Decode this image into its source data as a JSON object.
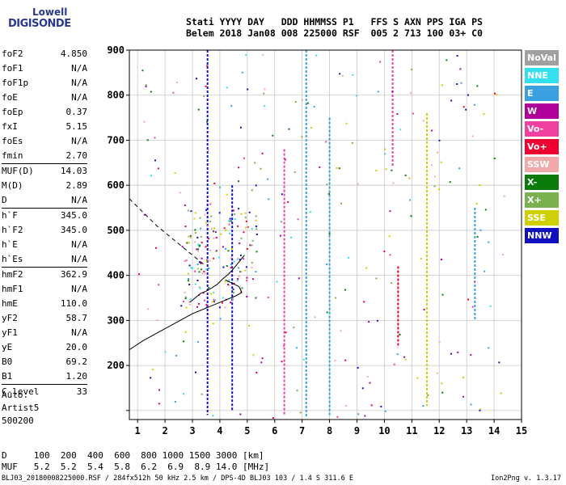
{
  "logo": {
    "line1": "Lowell",
    "line2": "DIGISONDE"
  },
  "header": {
    "line1": "Stati YYYY DAY   DDD HHMMSS P1   FFS S AXN PPS IGA PS",
    "line2": "Belem 2018 Jan08 008 225000 RSF  005 2 713 100 03+ C0"
  },
  "params": [
    {
      "group": [
        {
          "label": "foF2",
          "value": "4.850"
        },
        {
          "label": "foF1",
          "value": "N/A"
        },
        {
          "label": "foF1p",
          "value": "N/A"
        },
        {
          "label": "foE",
          "value": "N/A"
        },
        {
          "label": "foEp",
          "value": "0.37"
        },
        {
          "label": "fxI",
          "value": "5.15"
        },
        {
          "label": "foEs",
          "value": "N/A"
        },
        {
          "label": "fmin",
          "value": "2.70"
        }
      ]
    },
    {
      "group": [
        {
          "label": "MUF(D)",
          "value": "14.03"
        },
        {
          "label": "M(D)",
          "value": "2.89"
        },
        {
          "label": "D",
          "value": "N/A"
        }
      ]
    },
    {
      "group": [
        {
          "label": "h`F",
          "value": "345.0"
        },
        {
          "label": "h`F2",
          "value": "345.0"
        },
        {
          "label": "h`E",
          "value": "N/A"
        },
        {
          "label": "h`Es",
          "value": "N/A"
        }
      ]
    },
    {
      "group": [
        {
          "label": "hmF2",
          "value": "362.9"
        },
        {
          "label": "hmF1",
          "value": "N/A"
        },
        {
          "label": "hmE",
          "value": "110.0"
        },
        {
          "label": "yF2",
          "value": "58.7"
        },
        {
          "label": "yF1",
          "value": "N/A"
        },
        {
          "label": "yE",
          "value": "20.0"
        },
        {
          "label": "B0",
          "value": "69.2"
        },
        {
          "label": "B1",
          "value": "1.20"
        }
      ]
    },
    {
      "group": [
        {
          "label": "C-level",
          "value": "33"
        }
      ]
    }
  ],
  "misc": {
    "line1": "Auto:",
    "line2": "Artist5",
    "line3": "500200"
  },
  "legend": [
    {
      "label": "NoVal",
      "color": "#a0a0a0"
    },
    {
      "label": "NNE",
      "color": "#33e0f0"
    },
    {
      "label": "E",
      "color": "#3aa0e0"
    },
    {
      "label": "W",
      "color": "#b0009a"
    },
    {
      "label": "Vo-",
      "color": "#f040a0"
    },
    {
      "label": "Vo+",
      "color": "#f00030"
    },
    {
      "label": "SSW",
      "color": "#f0a8a8"
    },
    {
      "label": "X-",
      "color": "#0a7a0a"
    },
    {
      "label": "X+",
      "color": "#7ab050"
    },
    {
      "label": "SSE",
      "color": "#d0d000"
    },
    {
      "label": "NNW",
      "color": "#1010c0"
    }
  ],
  "dmuf": {
    "line1": "D     100  200  400  600  800 1000 1500 3000 [km]",
    "line2": "MUF   5.2  5.2  5.4  5.8  6.2  6.9  8.9 14.0 [MHz]"
  },
  "footer": {
    "left": "BLJ03_20180008225000.RSF / 284fx512h 50 kHz 2.5 km / DPS-4D BLJ03 103 / 1.4 S 311.6 E",
    "right": "Ion2Png v. 1.3.17"
  },
  "chart_data": {
    "type": "scatter",
    "xlim": [
      0.7,
      15
    ],
    "ylim": [
      80,
      900
    ],
    "x_ticks": [
      1,
      2,
      3,
      4,
      5,
      6,
      7,
      8,
      9,
      10,
      11,
      12,
      13,
      14,
      15
    ],
    "y_ticks": [
      100,
      200,
      300,
      400,
      500,
      600,
      700,
      800,
      900
    ],
    "y_tick_labels": [
      "",
      "200",
      "300",
      "400",
      "500",
      "600",
      "700",
      "800",
      "900"
    ],
    "grid": true,
    "legend_position": "right",
    "traces": [
      {
        "type": "dashed",
        "x": [
          0.7,
          1.2,
          1.7,
          2.2,
          2.6,
          3.0,
          3.4
        ],
        "y": [
          570,
          540,
          510,
          485,
          465,
          445,
          425
        ]
      },
      {
        "type": "solid",
        "x": [
          0.7,
          1.2,
          1.8,
          2.4,
          3.0,
          3.6,
          4.2,
          4.6,
          4.8,
          4.7,
          4.2
        ],
        "y": [
          235,
          255,
          275,
          295,
          315,
          330,
          345,
          355,
          362,
          375,
          390
        ]
      },
      {
        "type": "solid",
        "x": [
          2.9,
          3.1,
          3.3,
          3.5,
          3.7
        ],
        "y": [
          340,
          350,
          360,
          365,
          372
        ]
      },
      {
        "type": "solid",
        "x": [
          3.7,
          3.9,
          4.1,
          4.3,
          4.5,
          4.7,
          4.9
        ],
        "y": [
          372,
          380,
          392,
          402,
          415,
          430,
          445
        ]
      }
    ],
    "vertical_streaks": [
      {
        "x": 3.55,
        "y0": 90,
        "y1": 900,
        "color": "#1010c0"
      },
      {
        "x": 7.15,
        "y0": 85,
        "y1": 900,
        "color": "#3aa0e0"
      },
      {
        "x": 10.5,
        "y0": 240,
        "y1": 420,
        "color": "#f00030"
      },
      {
        "x": 11.55,
        "y0": 110,
        "y1": 760,
        "color": "#d0d000"
      },
      {
        "x": 8.0,
        "y0": 90,
        "y1": 750,
        "color": "#3aa0e0"
      },
      {
        "x": 6.35,
        "y0": 90,
        "y1": 680,
        "color": "#f040a0"
      },
      {
        "x": 10.3,
        "y0": 640,
        "y1": 900,
        "color": "#f040a0"
      },
      {
        "x": 4.45,
        "y0": 100,
        "y1": 600,
        "color": "#1010c0"
      },
      {
        "x": 13.3,
        "y0": 300,
        "y1": 550,
        "color": "#3aa0e0"
      }
    ]
  }
}
